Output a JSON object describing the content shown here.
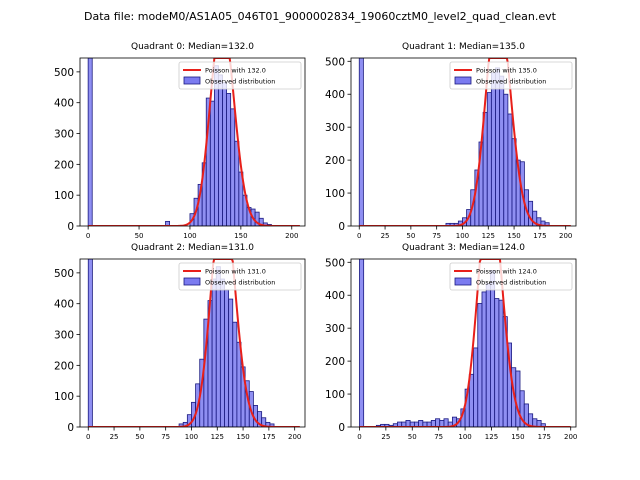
{
  "figure_title": "Data file: modeM0/AS1A05_046T01_9000002834_19060cztM0_level2_quad_clean.evt",
  "colors": {
    "hist_fill": "#7b7bf0",
    "hist_edge": "#1a1a80",
    "poisson": "#e8201a"
  },
  "chart_data": [
    {
      "type": "bar",
      "title": "Quadrant 0: Median=132.0",
      "median": 132.0,
      "legend": {
        "line": "Poisson with 132.0",
        "bars": "Observed distribution"
      },
      "legend_loc": "upper right",
      "xlim": [
        -8,
        213
      ],
      "ylim": [
        0,
        545
      ],
      "xticks": [
        0,
        50,
        100,
        150,
        200
      ],
      "yticks": [
        0,
        100,
        200,
        300,
        400,
        500
      ],
      "bin_width": 4,
      "bins": [
        [
          0,
          545
        ],
        [
          76,
          15
        ],
        [
          100,
          40
        ],
        [
          104,
          90
        ],
        [
          108,
          135
        ],
        [
          112,
          205
        ],
        [
          116,
          415
        ],
        [
          120,
          405
        ],
        [
          124,
          520
        ],
        [
          128,
          490
        ],
        [
          132,
          465
        ],
        [
          136,
          430
        ],
        [
          140,
          380
        ],
        [
          144,
          275
        ],
        [
          148,
          175
        ],
        [
          152,
          100
        ],
        [
          156,
          60
        ],
        [
          160,
          55
        ],
        [
          164,
          45
        ],
        [
          168,
          25
        ],
        [
          172,
          10
        ],
        [
          176,
          5
        ]
      ]
    },
    {
      "type": "bar",
      "title": "Quadrant 1: Median=135.0",
      "median": 135.0,
      "legend": {
        "line": "Poisson with 135.0",
        "bars": "Observed distribution"
      },
      "legend_loc": "upper right",
      "xlim": [
        -8,
        210
      ],
      "ylim": [
        0,
        510
      ],
      "xticks": [
        0,
        25,
        50,
        75,
        100,
        125,
        150,
        175,
        200
      ],
      "yticks": [
        0,
        100,
        200,
        300,
        400,
        500
      ],
      "bin_width": 4,
      "bins": [
        [
          0,
          510
        ],
        [
          84,
          8
        ],
        [
          88,
          8
        ],
        [
          92,
          8
        ],
        [
          96,
          15
        ],
        [
          100,
          25
        ],
        [
          104,
          50
        ],
        [
          108,
          110
        ],
        [
          112,
          170
        ],
        [
          116,
          255
        ],
        [
          120,
          345
        ],
        [
          124,
          405
        ],
        [
          128,
          465
        ],
        [
          132,
          480
        ],
        [
          136,
          455
        ],
        [
          140,
          400
        ],
        [
          144,
          340
        ],
        [
          148,
          265
        ],
        [
          152,
          200
        ],
        [
          156,
          195
        ],
        [
          160,
          110
        ],
        [
          164,
          75
        ],
        [
          168,
          45
        ],
        [
          172,
          25
        ],
        [
          176,
          15
        ],
        [
          180,
          10
        ]
      ]
    },
    {
      "type": "bar",
      "title": "Quadrant 2: Median=131.0",
      "median": 131.0,
      "legend": {
        "line": "Poisson with 131.0",
        "bars": "Observed distribution"
      },
      "legend_loc": "upper right",
      "xlim": [
        -8,
        210
      ],
      "ylim": [
        0,
        545
      ],
      "xticks": [
        0,
        25,
        50,
        75,
        100,
        125,
        150,
        175,
        200
      ],
      "yticks": [
        0,
        100,
        200,
        300,
        400,
        500
      ],
      "bin_width": 4,
      "bins": [
        [
          0,
          545
        ],
        [
          88,
          10
        ],
        [
          92,
          15
        ],
        [
          96,
          40
        ],
        [
          100,
          80
        ],
        [
          104,
          140
        ],
        [
          108,
          220
        ],
        [
          112,
          350
        ],
        [
          116,
          410
        ],
        [
          120,
          480
        ],
        [
          124,
          520
        ],
        [
          128,
          480
        ],
        [
          132,
          445
        ],
        [
          136,
          415
        ],
        [
          140,
          340
        ],
        [
          144,
          275
        ],
        [
          148,
          195
        ],
        [
          152,
          150
        ],
        [
          156,
          115
        ],
        [
          160,
          70
        ],
        [
          164,
          50
        ],
        [
          168,
          30
        ],
        [
          172,
          15
        ],
        [
          176,
          10
        ]
      ]
    },
    {
      "type": "bar",
      "title": "Quadrant 3: Median=124.0",
      "median": 124.0,
      "legend": {
        "line": "Poisson with 124.0",
        "bars": "Observed distribution"
      },
      "legend_loc": "upper right",
      "xlim": [
        -8,
        205
      ],
      "ylim": [
        0,
        510
      ],
      "xticks": [
        0,
        25,
        50,
        75,
        100,
        125,
        150,
        175,
        200
      ],
      "yticks": [
        0,
        100,
        200,
        300,
        400,
        500
      ],
      "bin_width": 4,
      "bins": [
        [
          0,
          510
        ],
        [
          16,
          5
        ],
        [
          20,
          8
        ],
        [
          24,
          8
        ],
        [
          28,
          5
        ],
        [
          32,
          10
        ],
        [
          36,
          15
        ],
        [
          40,
          15
        ],
        [
          44,
          20
        ],
        [
          48,
          15
        ],
        [
          52,
          15
        ],
        [
          56,
          20
        ],
        [
          60,
          15
        ],
        [
          64,
          15
        ],
        [
          68,
          20
        ],
        [
          72,
          25
        ],
        [
          76,
          20
        ],
        [
          80,
          25
        ],
        [
          84,
          15
        ],
        [
          88,
          30
        ],
        [
          92,
          25
        ],
        [
          96,
          55
        ],
        [
          100,
          115
        ],
        [
          104,
          160
        ],
        [
          108,
          240
        ],
        [
          112,
          375
        ],
        [
          116,
          410
        ],
        [
          120,
          435
        ],
        [
          124,
          475
        ],
        [
          128,
          390
        ],
        [
          132,
          385
        ],
        [
          136,
          335
        ],
        [
          140,
          255
        ],
        [
          144,
          180
        ],
        [
          148,
          170
        ],
        [
          152,
          110
        ],
        [
          156,
          70
        ],
        [
          160,
          40
        ],
        [
          164,
          25
        ],
        [
          168,
          20
        ],
        [
          172,
          10
        ]
      ]
    }
  ]
}
